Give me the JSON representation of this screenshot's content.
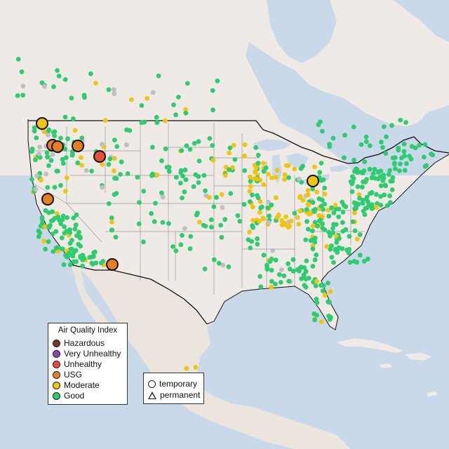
{
  "colors": {
    "water": "#c9d9e9",
    "land": "#efeae5",
    "land_mexico": "#ebe5de",
    "good": "#2ecc71",
    "moderate": "#f1c40f",
    "usg": "#e67e22",
    "unhealthy": "#e74c3c",
    "very_unhealthy": "#8e44ad",
    "hazardous": "#7b3524",
    "no_data": "#bfbfbf"
  },
  "aqi_legend": {
    "title": "Air Quality Index",
    "items": [
      {
        "label": "Hazardous",
        "color": "#7b3524"
      },
      {
        "label": "Very Unhealthy",
        "color": "#8e44ad"
      },
      {
        "label": "Unhealthy",
        "color": "#e74c3c"
      },
      {
        "label": "USG",
        "color": "#e67e22"
      },
      {
        "label": "Moderate",
        "color": "#f1c40f"
      },
      {
        "label": "Good",
        "color": "#2ecc71"
      }
    ]
  },
  "type_legend": {
    "items": [
      {
        "label": "temporary",
        "icon": "circle-icon"
      },
      {
        "label": "permanent",
        "icon": "triangle-icon"
      }
    ]
  }
}
